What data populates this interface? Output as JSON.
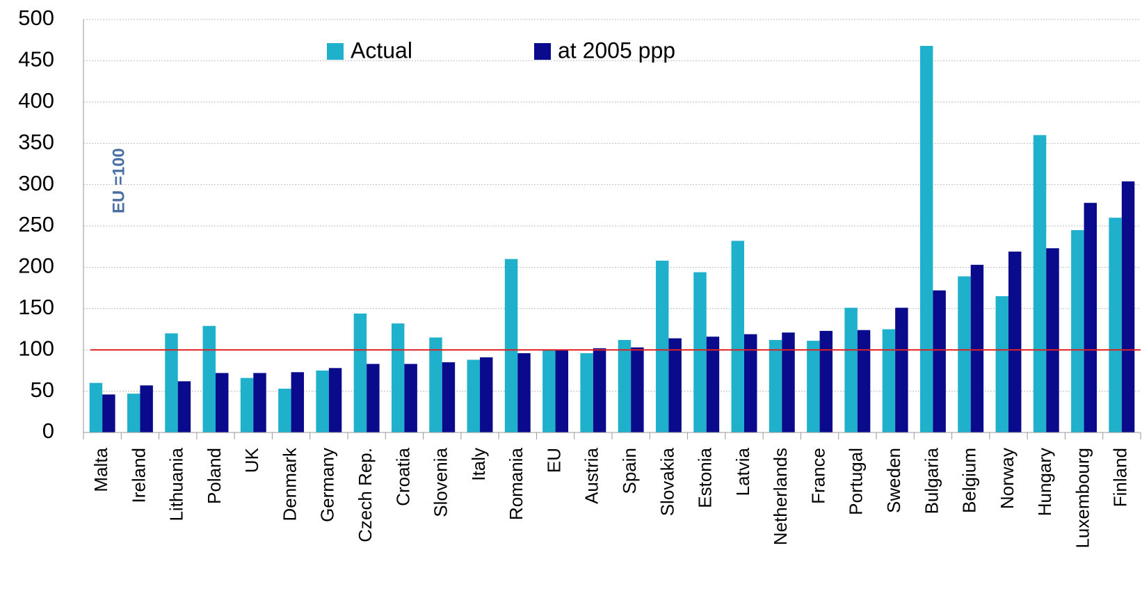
{
  "chart_data": {
    "type": "bar",
    "annotation": "EU =100",
    "categories": [
      "Malta",
      "Ireland",
      "Lithuania",
      "Poland",
      "UK",
      "Denmark",
      "Germany",
      "Czech Rep.",
      "Croatia",
      "Slovenia",
      "Italy",
      "Romania",
      "EU",
      "Austria",
      "Spain",
      "Slovakia",
      "Estonia",
      "Latvia",
      "Netherlands",
      "France",
      "Portugal",
      "Sweden",
      "Bulgaria",
      "Belgium",
      "Norway",
      "Hungary",
      "Luxembourg",
      "Finland"
    ],
    "series": [
      {
        "name": "Actual",
        "color": "#1fb0cc",
        "values": [
          60,
          47,
          120,
          129,
          66,
          53,
          75,
          144,
          132,
          115,
          88,
          210,
          100,
          96,
          112,
          208,
          194,
          232,
          112,
          111,
          151,
          125,
          468,
          189,
          165,
          360,
          245,
          260
        ]
      },
      {
        "name": "at 2005 ppp",
        "color": "#0a0a8c",
        "values": [
          46,
          57,
          62,
          72,
          72,
          73,
          78,
          83,
          83,
          85,
          91,
          96,
          100,
          102,
          103,
          114,
          116,
          119,
          121,
          123,
          124,
          151,
          172,
          203,
          219,
          223,
          278,
          304
        ]
      }
    ],
    "reference_line": {
      "value": 100,
      "color": "#e02020"
    },
    "ylim": [
      0,
      500
    ],
    "yticks": [
      0,
      50,
      100,
      150,
      200,
      250,
      300,
      350,
      400,
      450,
      500
    ],
    "grid": true
  }
}
